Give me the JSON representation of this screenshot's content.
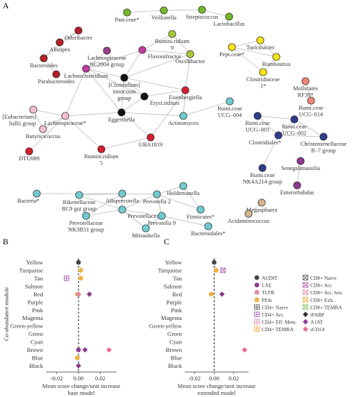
{
  "panel_labels": {
    "a": "A",
    "b": "B",
    "c": "C"
  },
  "network": {
    "nodes": [
      {
        "id": "past",
        "label": "Past.ceae*",
        "color": "#76b82a"
      },
      {
        "id": "veillonella",
        "label": "Veillonella",
        "color": "#76b82a"
      },
      {
        "id": "strepto",
        "label": "Streptococcus",
        "color": "#76b82a"
      },
      {
        "id": "lacto",
        "label": "Lactobacillus",
        "color": "#76b82a"
      },
      {
        "id": "odori",
        "label": "Odoribacter",
        "color": "#b3202a"
      },
      {
        "id": "alistipes",
        "label": "Alistipes",
        "color": "#b3202a"
      },
      {
        "id": "bacteroides",
        "label": "Bacteroides",
        "color": "#b3202a"
      },
      {
        "id": "parabact",
        "label": "Parabacteroides",
        "color": "#b3202a"
      },
      {
        "id": "lachnoNC",
        "label": "Lachnospiraceae NC2004 group",
        "color": "#9b3b8e"
      },
      {
        "id": "flavoni",
        "label": "Flavonifractor",
        "color": "#c03c9e"
      },
      {
        "id": "rumini9",
        "label": "Rumini.ridium 9",
        "color": "#a8c83a"
      },
      {
        "id": "oscilli",
        "label": "Oscillibacter",
        "color": "#a8c83a"
      },
      {
        "id": "lachnoclost",
        "label": "Lachnoclostridium",
        "color": "#c03c9e"
      },
      {
        "id": "cinnoc",
        "label": "[Clostridium] innocuum group",
        "color": "#111111"
      },
      {
        "id": "erysi",
        "label": "Erysi.ridium",
        "color": "#111111"
      },
      {
        "id": "eggerth",
        "label": "Eggerthella",
        "color": "#111111"
      },
      {
        "id": "eisenberg",
        "label": "Eisenbergiella",
        "color": "#d42030"
      },
      {
        "id": "ruminUCG004",
        "label": "Rumi.ceae UCG–004",
        "color": "#6fcbd0"
      },
      {
        "id": "actino",
        "label": "Actinomyces",
        "color": "#6fcbd0"
      },
      {
        "id": "eubact",
        "label": "[Eubacterium] hallii group",
        "color": "#f2bfd0"
      },
      {
        "id": "lachnosp",
        "label": "Lachnospiraceae*",
        "color": "#f2bfd0"
      },
      {
        "id": "butyri",
        "label": "Butyricicoccus",
        "color": "#f2bfd0"
      },
      {
        "id": "dtu089",
        "label": "DTU089",
        "color": "#d42030"
      },
      {
        "id": "rumini5",
        "label": "Rumini.ridium 5",
        "color": "#d42030"
      },
      {
        "id": "uba1819",
        "label": "UBA1819",
        "color": "#d42030"
      },
      {
        "id": "turici",
        "label": "Turicibacter",
        "color": "#f5e614"
      },
      {
        "id": "pept",
        "label": "Pept.ceae*",
        "color": "#f5e614"
      },
      {
        "id": "romboutsia",
        "label": "Romboutsia",
        "color": "#f5e614"
      },
      {
        "id": "clostrid1",
        "label": "Clostridiaceae 1*",
        "color": "#f5e614"
      },
      {
        "id": "mollicutes",
        "label": "Mollicutes RF39*",
        "color": "#ee8677"
      },
      {
        "id": "ruminUCG014",
        "label": "Rumi.ceae UCG–014",
        "color": "#ee8677"
      },
      {
        "id": "ruminUCG003",
        "label": "Rumi.ceae UCG–003",
        "color": "#2e3e8c"
      },
      {
        "id": "ruminUCG002",
        "label": "Rumi.ceae UCG–002",
        "color": "#2e3e8c"
      },
      {
        "id": "clostridiales",
        "label": "Clostridiales*",
        "color": "#2e3e8c"
      },
      {
        "id": "christ",
        "label": "Christensenellaceae R–7 group",
        "color": "#2e3e8c"
      },
      {
        "id": "ruminNK4A",
        "label": "Rumi.ceae NK4A214 group",
        "color": "#2e3e8c"
      },
      {
        "id": "senegal",
        "label": "Senegalimassilia",
        "color": "#8e3a8f"
      },
      {
        "id": "enteror",
        "label": "Enterorhabdus",
        "color": "#8e3a8f"
      },
      {
        "id": "holdem",
        "label": "Holdemanella",
        "color": "#6fcbd0"
      },
      {
        "id": "bacteria",
        "label": "Bacteria*",
        "color": "#6fcbd0"
      },
      {
        "id": "rikenRC9",
        "label": "Rikenellaceae RC9 gut group",
        "color": "#6fcbd0"
      },
      {
        "id": "allopre",
        "label": "Alloprevotella",
        "color": "#6fcbd0"
      },
      {
        "id": "prev2",
        "label": "Prevotella 2",
        "color": "#6fcbd0"
      },
      {
        "id": "firmicutes",
        "label": "Firmicutes*",
        "color": "#6fcbd0"
      },
      {
        "id": "prevceae",
        "label": "Prevotellaceae*",
        "color": "#6fcbd0"
      },
      {
        "id": "prevNK3B31",
        "label": "Prevotellaceae NK3B31 group",
        "color": "#6fcbd0"
      },
      {
        "id": "prev9",
        "label": "Prevotella 9",
        "color": "#6fcbd0"
      },
      {
        "id": "mitsuo",
        "label": "Mitsuokella",
        "color": "#6fcbd0"
      },
      {
        "id": "bacteroidales",
        "label": "Bacteroidales*",
        "color": "#6fcbd0"
      },
      {
        "id": "megasph",
        "label": "Megasphaera",
        "color": "#d2b48c"
      },
      {
        "id": "acidamin",
        "label": "Acidaminococcus",
        "color": "#d2b48c"
      }
    ],
    "edges": [
      [
        "past",
        "veillonella"
      ],
      [
        "veillonella",
        "strepto"
      ],
      [
        "strepto",
        "lacto"
      ],
      [
        "odori",
        "alistipes"
      ],
      [
        "odori",
        "bacteroides"
      ],
      [
        "alistipes",
        "bacteroides"
      ],
      [
        "bacteroides",
        "parabact"
      ],
      [
        "lachnoNC",
        "lachnoclost"
      ],
      [
        "flavoni",
        "rumini9"
      ],
      [
        "flavoni",
        "oscilli"
      ],
      [
        "rumini9",
        "oscilli"
      ],
      [
        "flavoni",
        "lachnoclost"
      ],
      [
        "flavoni",
        "cinnoc"
      ],
      [
        "lachnoclost",
        "cinnoc"
      ],
      [
        "lachnoclost",
        "erysi"
      ],
      [
        "lachnoclost",
        "eggerth"
      ],
      [
        "lachnoclost",
        "lachnosp"
      ],
      [
        "cinnoc",
        "erysi"
      ],
      [
        "cinnoc",
        "eggerth"
      ],
      [
        "cinnoc",
        "eisenberg"
      ],
      [
        "erysi",
        "eggerth"
      ],
      [
        "erysi",
        "eisenberg"
      ],
      [
        "oscilli",
        "eisenberg"
      ],
      [
        "oscilli",
        "cinnoc"
      ],
      [
        "eisenberg",
        "actino"
      ],
      [
        "ruminUCG004",
        "actino"
      ],
      [
        "eggerth",
        "lachnosp"
      ],
      [
        "eggerth",
        "actino"
      ],
      [
        "eggerth",
        "uba1819"
      ],
      [
        "eisenberg",
        "uba1819"
      ],
      [
        "lachnosp",
        "eubact"
      ],
      [
        "lachnosp",
        "butyri"
      ],
      [
        "lachnosp",
        "rumini5"
      ],
      [
        "lachnosp",
        "dtu089"
      ],
      [
        "eubact",
        "butyri"
      ],
      [
        "uba1819",
        "rumini5"
      ],
      [
        "turici",
        "pept"
      ],
      [
        "turici",
        "romboutsia"
      ],
      [
        "pept",
        "romboutsia"
      ],
      [
        "romboutsia",
        "clostrid1"
      ],
      [
        "pept",
        "clostrid1"
      ],
      [
        "mollicutes",
        "ruminUCG014"
      ],
      [
        "ruminUCG003",
        "clostridiales"
      ],
      [
        "ruminUCG002",
        "clostridiales"
      ],
      [
        "ruminUCG003",
        "ruminUCG002"
      ],
      [
        "clostridiales",
        "christ"
      ],
      [
        "clostridiales",
        "ruminNK4A"
      ],
      [
        "christ",
        "ruminUCG002"
      ],
      [
        "senegal",
        "enteror"
      ],
      [
        "holdem",
        "firmicutes"
      ],
      [
        "holdem",
        "prev2"
      ],
      [
        "bacteria",
        "allopre"
      ],
      [
        "rikenRC9",
        "allopre"
      ],
      [
        "allopre",
        "prev2"
      ],
      [
        "allopre",
        "prevceae"
      ],
      [
        "allopre",
        "prevNK3B31"
      ],
      [
        "prev2",
        "prevceae"
      ],
      [
        "prev2",
        "firmicutes"
      ],
      [
        "prevceae",
        "prevNK3B31"
      ],
      [
        "prevceae",
        "prev9"
      ],
      [
        "prevceae",
        "mitsuo"
      ],
      [
        "prevceae",
        "rikenRC9"
      ],
      [
        "prev9",
        "bacteroidales"
      ],
      [
        "prev9",
        "mitsuo"
      ],
      [
        "prev2",
        "prev9"
      ],
      [
        "megasph",
        "acidamin"
      ]
    ]
  },
  "chart_data": [
    {
      "type": "scatter",
      "panel": "B",
      "title": "",
      "ylabel": "Co-abundance module",
      "xlabel": "Mean score change/unit increase",
      "xlabel2": "base model",
      "categories": [
        "Yellow",
        "Turquoise",
        "Tan",
        "Salmon",
        "Red",
        "Purple",
        "Pink",
        "Magenta",
        "Green-yellow",
        "Green",
        "Cyan",
        "Brown",
        "Blue",
        "Black"
      ],
      "xlim": [
        -0.03,
        0.035
      ],
      "xticks": [
        "-0.02",
        "0.00",
        "0.02"
      ],
      "xtick_values": [
        -0.02,
        0.0,
        0.02
      ],
      "points": [
        {
          "series": "AUDIT",
          "module": "Yellow",
          "x": 0.0
        },
        {
          "series": "PEth",
          "module": "Turquoise",
          "x": 0.002
        },
        {
          "series": "PEth",
          "module": "Tan",
          "x": 0.002
        },
        {
          "series": "CD4+ Act.",
          "module": "Tan",
          "x": -0.011
        },
        {
          "series": "PEth",
          "module": "Red",
          "x": -0.001
        },
        {
          "series": "TLFB",
          "module": "Red",
          "x": 0.0
        },
        {
          "series": "A1AT",
          "module": "Red",
          "x": 0.01
        },
        {
          "series": "LAE",
          "module": "Brown",
          "x": 0.0
        },
        {
          "series": "A1AT",
          "module": "Brown",
          "x": 0.006
        },
        {
          "series": "sCD14",
          "module": "Brown",
          "x": 0.028
        },
        {
          "series": "PEth",
          "module": "Blue",
          "x": -0.001
        },
        {
          "series": "A1AT",
          "module": "Black",
          "x": 0.0
        }
      ]
    },
    {
      "type": "scatter",
      "panel": "C",
      "title": "",
      "ylabel": "",
      "xlabel": "Mean score change/unit increase",
      "xlabel2": "extended model",
      "categories": [
        "Yellow",
        "Turquoise",
        "Tan",
        "Salmon",
        "Red",
        "Purple",
        "Pink",
        "Magenta",
        "Green-yellow",
        "Green",
        "Cyan",
        "Brown",
        "Blue",
        "Black"
      ],
      "xlim": [
        -0.03,
        0.035
      ],
      "xticks": [
        "-0.02",
        "0.00",
        "0.02"
      ],
      "xtick_values": [
        -0.02,
        0.0,
        0.02
      ],
      "points": [
        {
          "series": "AUDIT",
          "module": "Yellow",
          "x": 0.0
        },
        {
          "series": "PEth",
          "module": "Turquoise",
          "x": 0.002
        },
        {
          "series": "CD8+ Act.",
          "module": "Turquoise",
          "x": 0.009
        },
        {
          "series": "PEth",
          "module": "Red",
          "x": -0.003
        },
        {
          "series": "A1AT",
          "module": "Red",
          "x": 0.008
        },
        {
          "series": "sCD14",
          "module": "Brown",
          "x": 0.031
        }
      ]
    }
  ],
  "legend": [
    {
      "name": "AUDIT",
      "color": "#444444",
      "shape": "circle"
    },
    {
      "name": "LAE",
      "color": "#8e3a8f",
      "shape": "circle"
    },
    {
      "name": "TLFB",
      "color": "#e08a9c",
      "shape": "circle"
    },
    {
      "name": "PEth",
      "color": "#f0b040",
      "shape": "circle"
    },
    {
      "name": "CD4+ Naive",
      "color": "#555555",
      "shape": "box-plus"
    },
    {
      "name": "CD4+ Act.",
      "color": "#b05bb0",
      "shape": "box-plus"
    },
    {
      "name": "CD4+ Eff. Mem.",
      "color": "#e891a8",
      "shape": "box-plus"
    },
    {
      "name": "CD4+ TEMRA",
      "color": "#f0b040",
      "shape": "box-plus"
    },
    {
      "name": "CD8+ Naive",
      "color": "#555555",
      "shape": "box-x"
    },
    {
      "name": "CD8+ Act.",
      "color": "#b05bb0",
      "shape": "box-x"
    },
    {
      "name": "CD8+ Act. Sen.",
      "color": "#e891a8",
      "shape": "box-x"
    },
    {
      "name": "CD8+ Exh.",
      "color": "#f0b040",
      "shape": "box-x"
    },
    {
      "name": "CD8+ TEMRA",
      "color": "#88c860",
      "shape": "box-x"
    },
    {
      "name": "iFABP",
      "color": "#333333",
      "shape": "diamond"
    },
    {
      "name": "A1AT",
      "color": "#8e3a8f",
      "shape": "diamond"
    },
    {
      "name": "sCD14",
      "color": "#e8708a",
      "shape": "diamond"
    }
  ]
}
